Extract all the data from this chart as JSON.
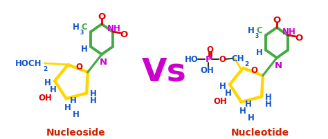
{
  "bg_color": "#ffffff",
  "vs_text": "Vs",
  "vs_color": "#cc00cc",
  "label_nucleoside": "Nucleoside",
  "label_nucleotide": "Nucleotide",
  "label_color": "#cc2200",
  "ring_color": "#FFD700",
  "base_color": "#44aa44",
  "O_color": "#dd0000",
  "N_color": "#cc00cc",
  "H_color": "#1155cc",
  "C_color": "#44aa44",
  "P_color": "#cc00cc",
  "OH_color": "#1155cc",
  "text_fontsize": 8.5,
  "text_fontsize_sub": 6.5,
  "label_fontsize": 10
}
